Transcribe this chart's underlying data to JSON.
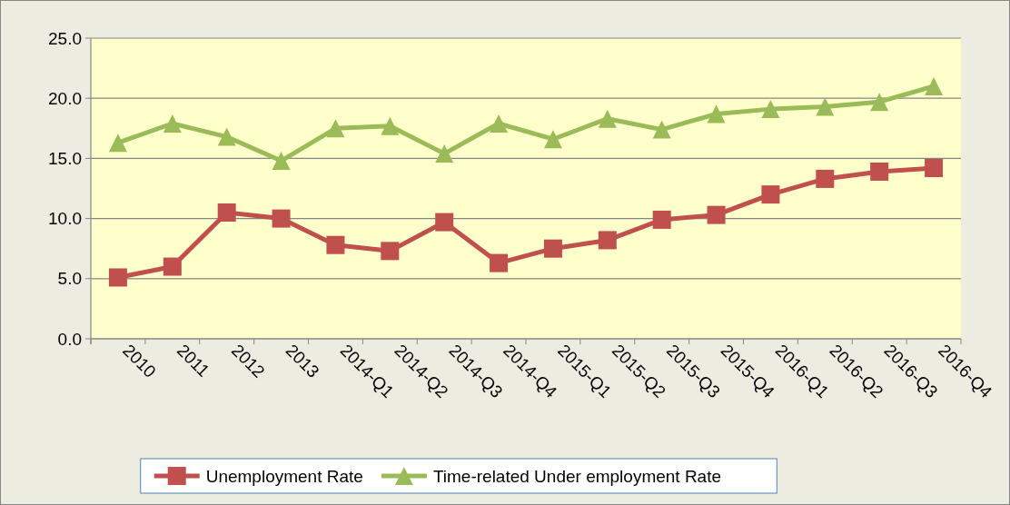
{
  "chart_data": {
    "type": "line",
    "categories": [
      "2010",
      "2011",
      "2012",
      "2013",
      "2014-Q1",
      "2014-Q2",
      "2014-Q3",
      "2014-Q4",
      "2015-Q1",
      "2015-Q2",
      "2015-Q3",
      "2015-Q4",
      "2016-Q1",
      "2016-Q2",
      "2016-Q3",
      "2016-Q4"
    ],
    "series": [
      {
        "name": "Unemployment Rate",
        "color": "#c0504d",
        "marker": "square",
        "values": [
          5.1,
          6.0,
          10.5,
          10.0,
          7.8,
          7.3,
          9.7,
          6.3,
          7.5,
          8.2,
          9.9,
          10.3,
          12.0,
          13.3,
          13.9,
          14.2
        ]
      },
      {
        "name": "Time-related Under employment Rate",
        "color": "#9bbb59",
        "marker": "triangle",
        "values": [
          16.3,
          17.9,
          16.8,
          14.8,
          17.5,
          17.7,
          15.4,
          17.9,
          16.6,
          18.3,
          17.4,
          18.7,
          19.1,
          19.3,
          19.7,
          21.0
        ]
      }
    ],
    "ylim": [
      0,
      25
    ],
    "yticks": [
      {
        "value": 0,
        "label": "0.0"
      },
      {
        "value": 5,
        "label": "5.0"
      },
      {
        "value": 10,
        "label": "10.0"
      },
      {
        "value": 15,
        "label": "15.0"
      },
      {
        "value": 20,
        "label": "20.0"
      },
      {
        "value": 25,
        "label": "25.0"
      }
    ],
    "grid": "y",
    "legend": "bottom"
  }
}
